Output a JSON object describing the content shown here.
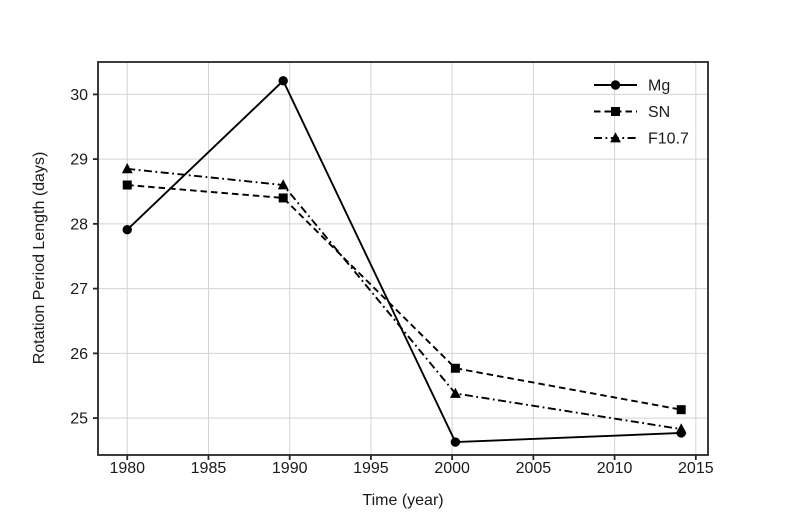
{
  "chart_data": {
    "type": "line",
    "title": "",
    "xlabel": "Time (year)",
    "ylabel": "Rotation Period Length (days)",
    "x": [
      1980,
      1989.6,
      2000.2,
      2014.1
    ],
    "series": [
      {
        "name": "Mg",
        "linestyle": "solid",
        "marker": "circle",
        "values": [
          27.91,
          30.21,
          24.63,
          24.77
        ]
      },
      {
        "name": "SN",
        "linestyle": "dashed",
        "marker": "square",
        "values": [
          28.6,
          28.4,
          25.77,
          25.13
        ]
      },
      {
        "name": "F10.7",
        "linestyle": "dashdot",
        "marker": "triangle-up",
        "values": [
          28.85,
          28.6,
          25.38,
          24.83
        ]
      }
    ],
    "x_ticks": [
      1980,
      1985,
      1990,
      1995,
      2000,
      2005,
      2010,
      2015
    ],
    "y_ticks": [
      25,
      26,
      27,
      28,
      29,
      30
    ],
    "xlim": [
      1978.2,
      2015.75
    ],
    "ylim": [
      24.43,
      30.5
    ],
    "grid": true,
    "legend_position": "upper right",
    "legend_frame": false,
    "colors": {
      "series": "#000000",
      "grid": "#d3d3d3",
      "spine": "#262626",
      "text": "#1a1a1a",
      "background": "#ffffff"
    }
  }
}
